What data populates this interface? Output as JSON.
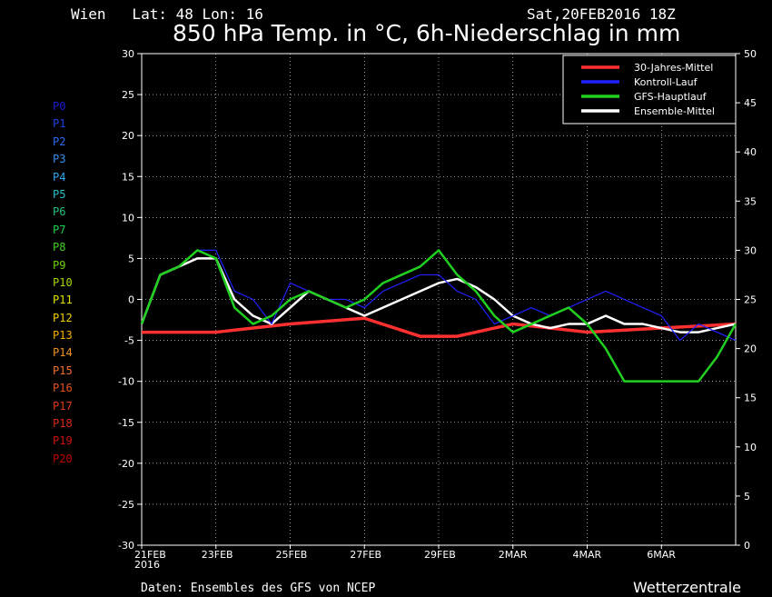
{
  "header": {
    "location": "Wien   Lat: 48 Lon: 16",
    "datetime": "Sat,20FEB2016 18Z",
    "title": "850 hPa Temp. in °C, 6h-Niederschlag in mm"
  },
  "footer": {
    "source": "Daten: Ensembles des GFS von NCEP",
    "brand": "Wetterzentrale"
  },
  "member_labels": [
    {
      "label": "P0",
      "color": "#1a1ad0"
    },
    {
      "label": "P1",
      "color": "#2040e0"
    },
    {
      "label": "P2",
      "color": "#2a6cf0"
    },
    {
      "label": "P3",
      "color": "#2f8ff0"
    },
    {
      "label": "P4",
      "color": "#30a8f0"
    },
    {
      "label": "P5",
      "color": "#28c0c8"
    },
    {
      "label": "P6",
      "color": "#20c080"
    },
    {
      "label": "P7",
      "color": "#20d050"
    },
    {
      "label": "P8",
      "color": "#40d020"
    },
    {
      "label": "P9",
      "color": "#70d000"
    },
    {
      "label": "P10",
      "color": "#a8d800"
    },
    {
      "label": "P11",
      "color": "#e0e000"
    },
    {
      "label": "P12",
      "color": "#f0d000"
    },
    {
      "label": "P13",
      "color": "#f0b000"
    },
    {
      "label": "P14",
      "color": "#f09020"
    },
    {
      "label": "P15",
      "color": "#f07030"
    },
    {
      "label": "P16",
      "color": "#e85020"
    },
    {
      "label": "P17",
      "color": "#e03818"
    },
    {
      "label": "P18",
      "color": "#d82818"
    },
    {
      "label": "P19",
      "color": "#d01010"
    },
    {
      "label": "P20",
      "color": "#c00000"
    }
  ],
  "chart_data": {
    "type": "line",
    "title": "850 hPa Temp. in °C, 6h-Niederschlag in mm",
    "x_tick_labels": [
      "21FEB\n2016",
      "23FEB",
      "25FEB",
      "27FEB",
      "29FEB",
      "2MAR",
      "4MAR",
      "6MAR"
    ],
    "x_range_days": [
      0,
      16
    ],
    "ylim_left": [
      -30,
      30
    ],
    "yticks_left": [
      30,
      25,
      20,
      15,
      10,
      5,
      0,
      -5,
      -10,
      -15,
      -20,
      -25,
      -30
    ],
    "ylim_right": [
      0,
      50
    ],
    "yticks_right": [
      50,
      45,
      40,
      35,
      30,
      25,
      20,
      15,
      10,
      5,
      0
    ],
    "grid": "dotted",
    "legend": {
      "placement": "top-right",
      "entries": [
        {
          "name": "30-Jahres-Mittel",
          "color": "#ff3030"
        },
        {
          "name": "Kontroll-Lauf",
          "color": "#2020ff"
        },
        {
          "name": "GFS-Hauptlauf",
          "color": "#20d020"
        },
        {
          "name": "Ensemble-Mittel",
          "color": "#ffffff"
        }
      ]
    },
    "series": [
      {
        "name": "30-Jahres-Mittel",
        "color": "#ff3030",
        "width": 3.5,
        "x": [
          0,
          2,
          4,
          6,
          7.5,
          8.5,
          10,
          12,
          14,
          16
        ],
        "y": [
          -4,
          -4,
          -3,
          -2.3,
          -4.5,
          -4.5,
          -3,
          -4,
          -3.5,
          -3
        ]
      },
      {
        "name": "Ensemble-Mittel",
        "color": "#ffffff",
        "width": 2.5,
        "x": [
          0,
          0.5,
          1,
          1.5,
          2,
          2.5,
          3,
          3.5,
          4,
          4.5,
          5,
          5.5,
          6,
          6.5,
          7,
          7.5,
          8,
          8.5,
          9,
          9.5,
          10,
          10.5,
          11,
          11.5,
          12,
          12.5,
          13,
          13.5,
          14,
          14.5,
          15,
          15.5,
          16
        ],
        "y": [
          -3,
          3,
          4,
          5,
          5,
          0,
          -2,
          -3,
          -1,
          1,
          0,
          -1,
          -2,
          -1,
          0,
          1,
          2,
          2.5,
          1.5,
          0,
          -2,
          -3,
          -3.5,
          -3,
          -3,
          -2,
          -3,
          -3,
          -3.5,
          -4,
          -4,
          -3.5,
          -3
        ]
      },
      {
        "name": "Kontroll-Lauf",
        "color": "#2020ff",
        "width": 1.2,
        "x": [
          0,
          0.5,
          1,
          1.5,
          2,
          2.5,
          3,
          3.5,
          4,
          4.5,
          5,
          5.5,
          6,
          6.5,
          7,
          7.5,
          8,
          8.5,
          9,
          9.5,
          10,
          10.5,
          11,
          11.5,
          12,
          12.5,
          13,
          13.5,
          14,
          14.5,
          15,
          15.5,
          16
        ],
        "y": [
          -3,
          3,
          4,
          6,
          6,
          1,
          0,
          -3,
          2,
          1,
          0,
          0,
          -1,
          1,
          2,
          3,
          3,
          1,
          0,
          -3,
          -2,
          -1,
          -2,
          -1,
          0,
          1,
          0,
          -1,
          -2,
          -5,
          -3,
          -4,
          -5
        ]
      },
      {
        "name": "GFS-Hauptlauf",
        "color": "#20d020",
        "width": 2.5,
        "x": [
          0,
          0.5,
          1,
          1.5,
          2,
          2.5,
          3,
          3.5,
          4,
          4.5,
          5,
          5.5,
          6,
          6.5,
          7,
          7.5,
          8,
          8.5,
          9,
          9.5,
          10,
          10.5,
          11,
          11.5,
          12,
          12.5,
          13,
          13.5,
          14,
          14.5,
          15,
          15.5,
          16
        ],
        "y": [
          -3,
          3,
          4,
          6,
          5,
          -1,
          -3,
          -2,
          0,
          1,
          0,
          -1,
          0,
          2,
          3,
          4,
          6,
          3,
          1,
          -2,
          -4,
          -3,
          -2,
          -1,
          -3,
          -6,
          -10,
          -10,
          -10,
          -10,
          -10,
          -7,
          -3
        ]
      }
    ]
  }
}
